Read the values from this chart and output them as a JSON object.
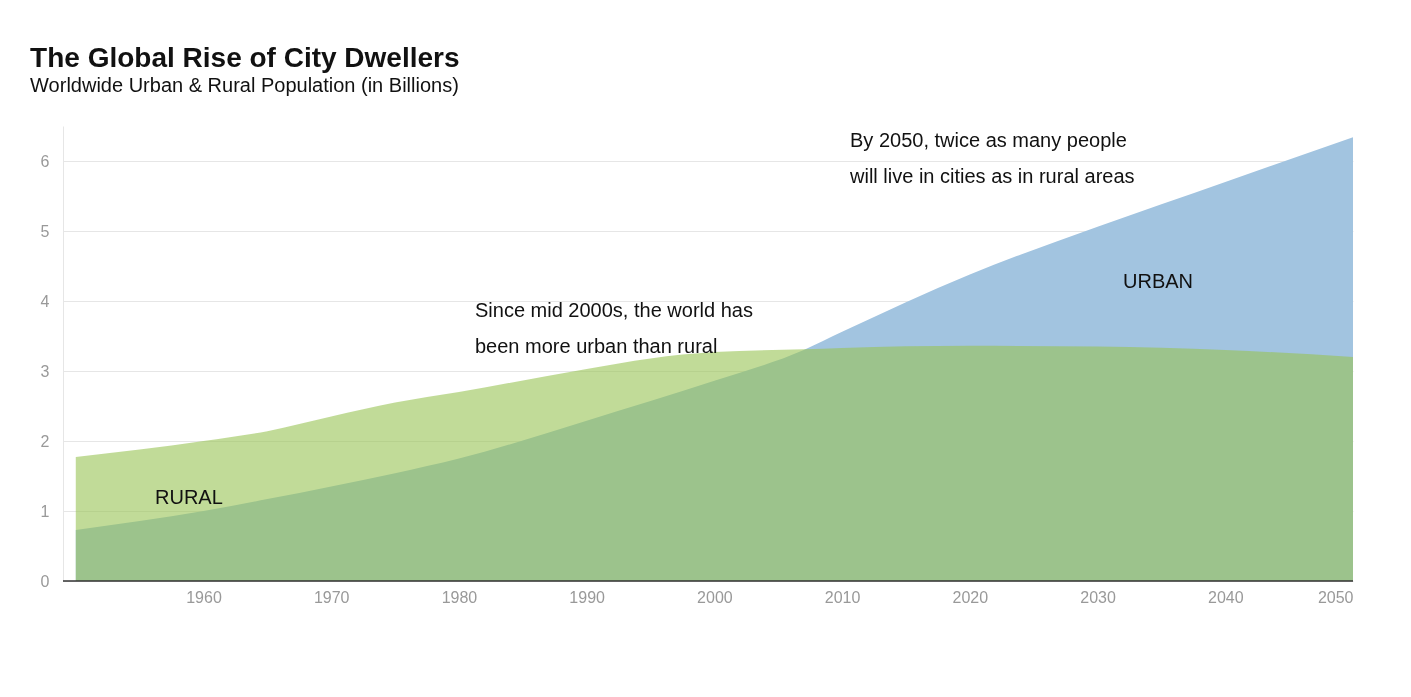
{
  "chart_data": {
    "type": "area",
    "title": "The Global Rise of City Dwellers",
    "subtitle": "Worldwide Urban & Rural Population (in Billions)",
    "x": [
      1950,
      1960,
      1965,
      1970,
      1975,
      1980,
      1990,
      1995,
      2000,
      2007,
      2010,
      2020,
      2030,
      2040,
      2050
    ],
    "series": [
      {
        "name": "URBAN",
        "color": "#a2c4e0",
        "values": [
          0.73,
          1.0,
          1.17,
          1.35,
          1.54,
          1.75,
          2.29,
          2.57,
          2.86,
          3.3,
          3.56,
          4.38,
          5.06,
          5.7,
          6.34
        ]
      },
      {
        "name": "RURAL",
        "color": "#98c353",
        "values": [
          1.77,
          2.0,
          2.14,
          2.35,
          2.55,
          2.7,
          3.03,
          3.18,
          3.27,
          3.31,
          3.33,
          3.36,
          3.35,
          3.3,
          3.2
        ]
      }
    ],
    "annotations": [
      "Since mid 2000s, the world has\nbeen more urban than rural",
      "By 2050, twice as many people\nwill live in cities as in rural areas"
    ],
    "xlim": [
      1949,
      2050
    ],
    "xticks": [
      1960,
      1970,
      1980,
      1990,
      2000,
      2010,
      2020,
      2030,
      2040,
      2050
    ],
    "ylim": [
      0,
      6.5
    ],
    "yticks": [
      0,
      1,
      2,
      3,
      4,
      5,
      6
    ],
    "grid": "y"
  }
}
